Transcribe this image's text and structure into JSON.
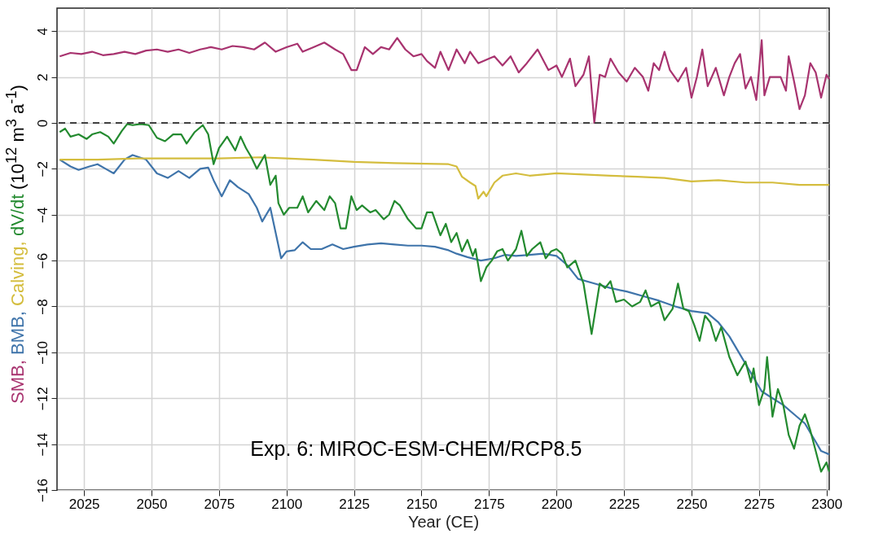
{
  "chart_data": {
    "type": "line",
    "xlabel": "Year (CE)",
    "ylabel": "(10$^{12}$ m$^{3}$ a$^{-1}$)",
    "xlim": [
      2015,
      2301
    ],
    "xticks": [
      2025,
      2050,
      2075,
      2100,
      2125,
      2150,
      2175,
      2200,
      2225,
      2250,
      2275,
      2300
    ],
    "ylim": [
      -16,
      5
    ],
    "yticks": [
      -16,
      -14,
      -12,
      -10,
      -8,
      -6,
      -4,
      -2,
      0,
      2,
      4
    ],
    "grid": true,
    "legend": false,
    "annotations": [
      "Exp. 6: MIROC-ESM-CHEM/RCP8.5"
    ],
    "ref_lines": [
      {
        "axis": "y",
        "value": 0,
        "label": null,
        "color": "#404040",
        "line_style": "dashed"
      }
    ],
    "series": [
      {
        "name": "SMB,",
        "color": "#a8336f",
        "x": [
          2016,
          2020,
          2024,
          2028,
          2032,
          2036,
          2040,
          2044,
          2048,
          2052,
          2056,
          2060,
          2064,
          2068,
          2072,
          2076,
          2080,
          2084,
          2088,
          2092,
          2096,
          2100,
          2104,
          2106,
          2110,
          2114,
          2118,
          2121,
          2124,
          2126,
          2129,
          2132,
          2135,
          2138,
          2141,
          2144,
          2147,
          2150,
          2152,
          2155,
          2157,
          2160,
          2163,
          2166,
          2168,
          2171,
          2175,
          2177,
          2180,
          2183,
          2186,
          2189,
          2193,
          2197,
          2200,
          2202,
          2205,
          2207,
          2210,
          2212,
          2214,
          2216,
          2218,
          2220,
          2223,
          2226,
          2229,
          2232,
          2234,
          2236,
          2238,
          2240,
          2242,
          2245,
          2248,
          2250,
          2252,
          2254,
          2256,
          2259,
          2262,
          2264,
          2266,
          2268,
          2270,
          2272,
          2274,
          2276,
          2277,
          2279,
          2283,
          2285,
          2286,
          2288,
          2290,
          2292,
          2294,
          2296,
          2298,
          2300,
          2301
        ],
        "values": [
          2.9,
          3.05,
          3.0,
          3.1,
          2.95,
          3.0,
          3.1,
          3.0,
          3.15,
          3.2,
          3.1,
          3.2,
          3.05,
          3.2,
          3.3,
          3.2,
          3.35,
          3.3,
          3.2,
          3.5,
          3.1,
          3.3,
          3.45,
          3.1,
          3.3,
          3.5,
          3.2,
          3.0,
          2.3,
          2.3,
          3.3,
          3.0,
          3.3,
          3.2,
          3.7,
          3.2,
          2.9,
          3.0,
          2.7,
          2.4,
          3.1,
          2.3,
          3.2,
          2.6,
          3.1,
          2.6,
          2.8,
          2.9,
          2.5,
          2.9,
          2.2,
          2.6,
          3.2,
          2.3,
          2.5,
          2.0,
          2.8,
          1.6,
          2.1,
          2.9,
          0.0,
          2.1,
          2.0,
          2.8,
          2.2,
          1.8,
          2.4,
          2.0,
          1.4,
          2.6,
          2.3,
          3.1,
          2.3,
          1.8,
          2.4,
          1.1,
          2.0,
          3.2,
          1.6,
          2.4,
          1.2,
          2.0,
          2.6,
          3.0,
          1.5,
          2.0,
          1.0,
          3.6,
          1.2,
          2.0,
          2.0,
          1.4,
          2.9,
          1.8,
          0.6,
          1.2,
          2.6,
          2.2,
          1.1,
          2.1,
          1.9
        ]
      },
      {
        "name": "BMB,",
        "color": "#3f74aa",
        "x": [
          2016,
          2020,
          2023,
          2027,
          2030,
          2033,
          2036,
          2040,
          2043,
          2048,
          2052,
          2056,
          2060,
          2064,
          2068,
          2071,
          2073,
          2076,
          2079,
          2082,
          2086,
          2089,
          2091,
          2094,
          2096,
          2098,
          2100,
          2103,
          2106,
          2109,
          2113,
          2117,
          2121,
          2125,
          2130,
          2135,
          2140,
          2145,
          2150,
          2155,
          2160,
          2163,
          2167,
          2172,
          2177,
          2181,
          2185,
          2190,
          2195,
          2200,
          2204,
          2208,
          2214,
          2220,
          2226,
          2232,
          2238,
          2244,
          2250,
          2256,
          2260,
          2264,
          2268,
          2272,
          2276,
          2280,
          2284,
          2288,
          2292,
          2296,
          2298,
          2301
        ],
        "values": [
          -1.6,
          -1.9,
          -2.05,
          -1.9,
          -1.8,
          -2.0,
          -2.2,
          -1.6,
          -1.4,
          -1.6,
          -2.2,
          -2.4,
          -2.1,
          -2.4,
          -2.0,
          -1.95,
          -2.5,
          -3.2,
          -2.5,
          -2.8,
          -3.1,
          -3.7,
          -4.3,
          -3.7,
          -4.8,
          -5.9,
          -5.6,
          -5.55,
          -5.2,
          -5.5,
          -5.5,
          -5.3,
          -5.5,
          -5.4,
          -5.3,
          -5.25,
          -5.3,
          -5.35,
          -5.35,
          -5.4,
          -5.55,
          -5.7,
          -5.85,
          -6.0,
          -5.9,
          -5.75,
          -5.8,
          -5.75,
          -5.7,
          -5.8,
          -6.2,
          -6.8,
          -7.0,
          -7.2,
          -7.35,
          -7.55,
          -7.75,
          -8.0,
          -8.2,
          -8.3,
          -8.7,
          -9.3,
          -10.1,
          -10.9,
          -11.7,
          -12.0,
          -12.3,
          -12.7,
          -13.1,
          -13.9,
          -14.3,
          -14.45
        ]
      },
      {
        "name": "Calving,",
        "color": "#d4bd3e",
        "x": [
          2016,
          2030,
          2045,
          2060,
          2075,
          2090,
          2100,
          2110,
          2125,
          2140,
          2160,
          2163,
          2165,
          2168,
          2170,
          2171,
          2173,
          2174,
          2177,
          2180,
          2185,
          2190,
          2200,
          2210,
          2220,
          2230,
          2240,
          2250,
          2260,
          2270,
          2280,
          2290,
          2301
        ],
        "values": [
          -1.6,
          -1.6,
          -1.55,
          -1.55,
          -1.55,
          -1.5,
          -1.55,
          -1.6,
          -1.7,
          -1.75,
          -1.8,
          -1.9,
          -2.35,
          -2.6,
          -2.75,
          -3.3,
          -3.0,
          -3.2,
          -2.6,
          -2.3,
          -2.2,
          -2.3,
          -2.2,
          -2.25,
          -2.3,
          -2.35,
          -2.4,
          -2.55,
          -2.5,
          -2.6,
          -2.6,
          -2.7,
          -2.7
        ]
      },
      {
        "name": "dV/dt",
        "color": "#238a2f",
        "x": [
          2016,
          2018,
          2020,
          2023,
          2026,
          2028,
          2031,
          2034,
          2036,
          2039,
          2041,
          2043,
          2046,
          2049,
          2052,
          2055,
          2058,
          2061,
          2063,
          2066,
          2069,
          2071,
          2073,
          2075,
          2078,
          2081,
          2083,
          2085,
          2087,
          2089,
          2092,
          2094,
          2096,
          2097,
          2099,
          2101,
          2104,
          2106,
          2108,
          2111,
          2114,
          2116,
          2118,
          2120,
          2122,
          2124,
          2126,
          2128,
          2131,
          2133,
          2136,
          2138,
          2140,
          2142,
          2145,
          2148,
          2150,
          2152,
          2154,
          2157,
          2159,
          2161,
          2163,
          2165,
          2167,
          2169,
          2170,
          2172,
          2174,
          2176,
          2178,
          2180,
          2182,
          2185,
          2187,
          2189,
          2191,
          2194,
          2196,
          2198,
          2200,
          2202,
          2204,
          2207,
          2210,
          2213,
          2216,
          2218,
          2220,
          2222,
          2225,
          2228,
          2231,
          2233,
          2235,
          2238,
          2240,
          2243,
          2245,
          2247,
          2249,
          2251,
          2253,
          2255,
          2257,
          2259,
          2261,
          2264,
          2267,
          2270,
          2272,
          2273,
          2275,
          2277,
          2278,
          2280,
          2282,
          2284,
          2286,
          2288,
          2290,
          2292,
          2294,
          2296,
          2298,
          2300,
          2301
        ],
        "values": [
          -0.4,
          -0.25,
          -0.6,
          -0.5,
          -0.7,
          -0.5,
          -0.4,
          -0.6,
          -0.9,
          -0.35,
          -0.05,
          -0.1,
          -0.05,
          -0.1,
          -0.65,
          -0.8,
          -0.5,
          -0.5,
          -0.9,
          -0.4,
          -0.1,
          -0.5,
          -1.8,
          -1.1,
          -0.6,
          -1.2,
          -0.6,
          -1.1,
          -1.5,
          -2.0,
          -1.4,
          -2.7,
          -2.3,
          -3.5,
          -4.0,
          -3.7,
          -3.7,
          -3.2,
          -3.9,
          -3.4,
          -3.8,
          -3.2,
          -3.5,
          -4.6,
          -4.6,
          -3.2,
          -3.8,
          -3.6,
          -3.9,
          -3.8,
          -4.2,
          -4.0,
          -3.4,
          -3.6,
          -4.2,
          -4.6,
          -4.6,
          -3.9,
          -3.9,
          -4.9,
          -4.4,
          -5.2,
          -4.8,
          -5.6,
          -5.1,
          -5.8,
          -5.5,
          -6.9,
          -6.3,
          -6.0,
          -5.6,
          -5.5,
          -6.0,
          -5.5,
          -4.7,
          -5.8,
          -5.5,
          -5.2,
          -5.9,
          -5.6,
          -5.5,
          -5.7,
          -6.3,
          -6.0,
          -7.0,
          -9.2,
          -7.0,
          -7.2,
          -6.9,
          -7.8,
          -7.7,
          -8.0,
          -7.8,
          -7.3,
          -8.0,
          -7.8,
          -8.6,
          -8.1,
          -7.0,
          -8.1,
          -8.2,
          -8.8,
          -9.5,
          -8.4,
          -8.7,
          -9.5,
          -8.9,
          -10.2,
          -11.0,
          -10.4,
          -11.3,
          -10.7,
          -12.3,
          -11.6,
          -10.2,
          -12.8,
          -11.6,
          -12.3,
          -13.6,
          -14.2,
          -13.2,
          -12.7,
          -13.4,
          -14.3,
          -15.2,
          -14.8,
          -15.2
        ]
      }
    ]
  }
}
